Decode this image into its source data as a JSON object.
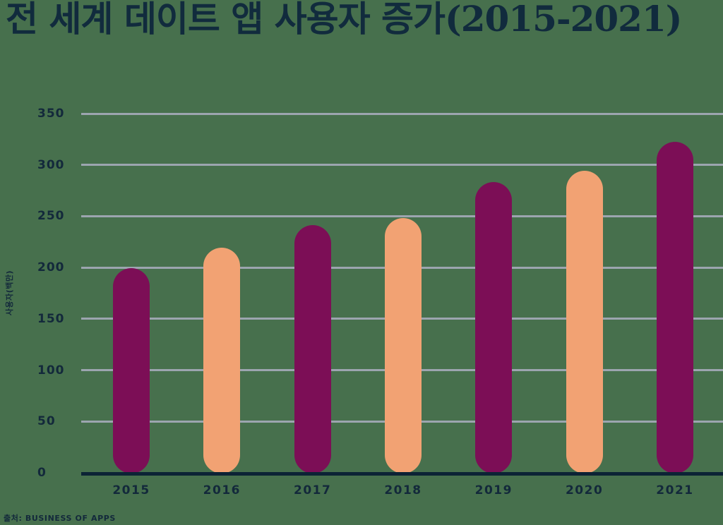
{
  "title": "전 세계 데이트 앱 사용자 증가(2015-2021)",
  "source": "출처: BUSINESS OF APPS",
  "chart_data": {
    "type": "bar",
    "title": "전 세계 데이트 앱 사용자 증가(2015-2021)",
    "categories": [
      "2015",
      "2016",
      "2017",
      "2018",
      "2019",
      "2020",
      "2021"
    ],
    "values": [
      200,
      220,
      242,
      249,
      284,
      295,
      323
    ],
    "xlabel": "",
    "ylabel": "사용자(백만)",
    "ylim": [
      0,
      350
    ],
    "yticks": [
      0,
      50,
      100,
      150,
      200,
      250,
      300,
      350
    ],
    "grid": true,
    "legend": "none",
    "source": "출처: BUSINESS OF APPS",
    "bar_colors": [
      "#7C0E56",
      "#F2A273",
      "#7C0E56",
      "#F2A273",
      "#7C0E56",
      "#F2A273",
      "#7C0E56"
    ],
    "palette": {
      "purple": "#7C0E56",
      "orange": "#F2A273",
      "background": "#47704D",
      "gridline": "#9CA5AF",
      "axis": "#0C2335",
      "text": "#13293B",
      "title_text": "#112B3D"
    }
  }
}
